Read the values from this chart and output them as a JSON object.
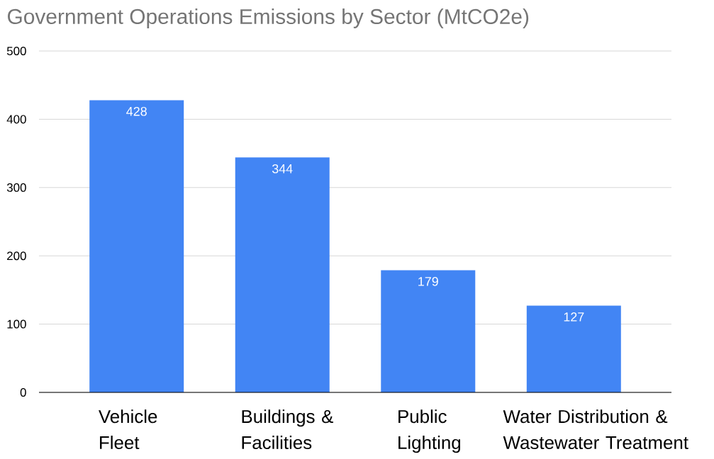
{
  "chart_data": {
    "type": "bar",
    "title": "Government Operations Emissions by Sector (MtCO2e)",
    "categories": [
      "Vehicle Fleet",
      "Buildings & Facilities",
      "Public Lighting",
      "Water Distribution & Wastewater Treatment"
    ],
    "values": [
      428,
      344,
      179,
      127
    ],
    "color": "#4285f4",
    "ylim": [
      0,
      500
    ],
    "yticks": [
      0,
      100,
      200,
      300,
      400,
      500
    ],
    "grid": "y",
    "data_labels": true
  }
}
